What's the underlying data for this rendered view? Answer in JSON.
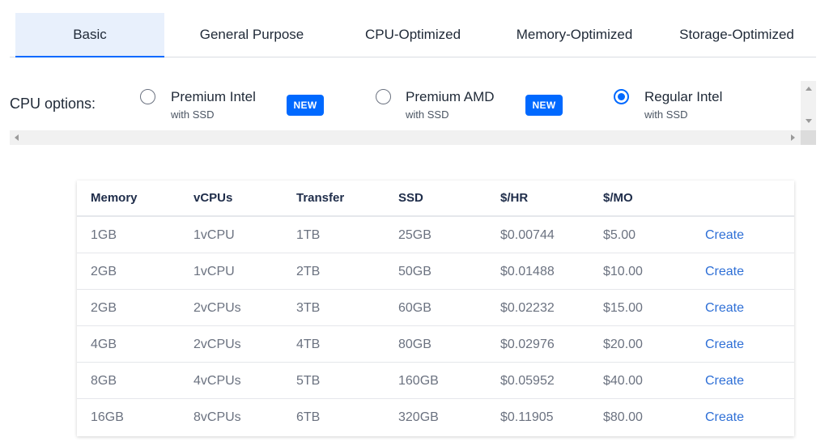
{
  "tabs": [
    {
      "label": "Basic",
      "active": true
    },
    {
      "label": "General Purpose",
      "active": false
    },
    {
      "label": "CPU-Optimized",
      "active": false
    },
    {
      "label": "Memory-Optimized",
      "active": false
    },
    {
      "label": "Storage-Optimized",
      "active": false
    }
  ],
  "cpu_options": {
    "label": "CPU options:",
    "options": [
      {
        "title": "Premium Intel",
        "subtitle": "with SSD",
        "badge": "NEW",
        "selected": false
      },
      {
        "title": "Premium AMD",
        "subtitle": "with SSD",
        "badge": "NEW",
        "selected": false
      },
      {
        "title": "Regular Intel",
        "subtitle": "with SSD",
        "selected": true
      }
    ]
  },
  "table": {
    "headers": [
      "Memory",
      "vCPUs",
      "Transfer",
      "SSD",
      "$/HR",
      "$/MO"
    ],
    "rows": [
      {
        "memory": "1GB",
        "vcpus": "1vCPU",
        "transfer": "1TB",
        "ssd": "25GB",
        "hr": "$0.00744",
        "mo": "$5.00",
        "action": "Create"
      },
      {
        "memory": "2GB",
        "vcpus": "1vCPU",
        "transfer": "2TB",
        "ssd": "50GB",
        "hr": "$0.01488",
        "mo": "$10.00",
        "action": "Create"
      },
      {
        "memory": "2GB",
        "vcpus": "2vCPUs",
        "transfer": "3TB",
        "ssd": "60GB",
        "hr": "$0.02232",
        "mo": "$15.00",
        "action": "Create"
      },
      {
        "memory": "4GB",
        "vcpus": "2vCPUs",
        "transfer": "4TB",
        "ssd": "80GB",
        "hr": "$0.02976",
        "mo": "$20.00",
        "action": "Create"
      },
      {
        "memory": "8GB",
        "vcpus": "4vCPUs",
        "transfer": "5TB",
        "ssd": "160GB",
        "hr": "$0.05952",
        "mo": "$40.00",
        "action": "Create"
      },
      {
        "memory": "16GB",
        "vcpus": "8vCPUs",
        "transfer": "6TB",
        "ssd": "320GB",
        "hr": "$0.11905",
        "mo": "$80.00",
        "action": "Create"
      }
    ]
  },
  "colors": {
    "accent": "#0069ff",
    "link": "#2e6fd6",
    "active_tab_bg": "#e8f0fc"
  },
  "icons": {
    "scroll_up": "scroll-up-arrow-icon",
    "scroll_down": "scroll-down-arrow-icon",
    "scroll_left": "scroll-left-arrow-icon",
    "scroll_right": "scroll-right-arrow-icon"
  }
}
